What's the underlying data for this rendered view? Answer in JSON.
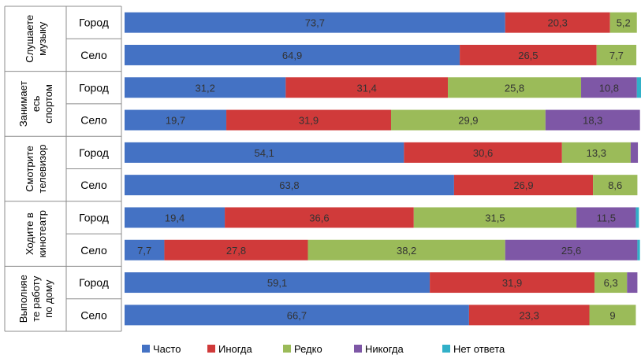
{
  "chart_data": {
    "type": "bar",
    "orientation": "horizontal",
    "stacked": true,
    "groups": [
      {
        "label_lines": [
          "Слушаете",
          "музыку"
        ],
        "rows": [
          {
            "label": "Город",
            "values": [
              73.7,
              20.3,
              5.2,
              0,
              0
            ],
            "labels": [
              "73,7",
              "20,3",
              "5,2",
              "",
              ""
            ]
          },
          {
            "label": "Село",
            "values": [
              64.9,
              26.5,
              7.7,
              0,
              0
            ],
            "labels": [
              "64,9",
              "26,5",
              "7,7",
              "",
              ""
            ]
          }
        ]
      },
      {
        "label_lines": [
          "Занимает",
          "есь",
          "спортом"
        ],
        "rows": [
          {
            "label": "Город",
            "values": [
              31.2,
              31.4,
              25.8,
              10.8,
              0.8
            ],
            "labels": [
              "31,2",
              "31,4",
              "25,8",
              "10,8",
              ""
            ]
          },
          {
            "label": "Село",
            "values": [
              19.7,
              31.9,
              29.9,
              18.3,
              0
            ],
            "labels": [
              "19,7",
              "31,9",
              "29,9",
              "18,3",
              ""
            ]
          }
        ]
      },
      {
        "label_lines": [
          "Смотрите",
          "телевизор"
        ],
        "rows": [
          {
            "label": "Город",
            "values": [
              54.1,
              30.6,
              13.3,
              1.4,
              0
            ],
            "labels": [
              "54,1",
              "30,6",
              "13,3",
              "",
              ""
            ]
          },
          {
            "label": "Село",
            "values": [
              63.8,
              26.9,
              8.6,
              0,
              0
            ],
            "labels": [
              "63,8",
              "26,9",
              "8,6",
              "",
              ""
            ]
          }
        ]
      },
      {
        "label_lines": [
          "Ходите в",
          "кинотеатр"
        ],
        "rows": [
          {
            "label": "Город",
            "values": [
              19.4,
              36.6,
              31.5,
              11.5,
              0.6
            ],
            "labels": [
              "19,4",
              "36,6",
              "31,5",
              "11,5",
              ""
            ]
          },
          {
            "label": "Село",
            "values": [
              7.7,
              27.8,
              38.2,
              25.6,
              0.5
            ],
            "labels": [
              "7,7",
              "27,8",
              "38,2",
              "25,6",
              ""
            ]
          }
        ]
      },
      {
        "label_lines": [
          "Выполняе",
          "те работу",
          "по дому"
        ],
        "rows": [
          {
            "label": "Город",
            "values": [
              59.1,
              31.9,
              6.3,
              2.0,
              0
            ],
            "labels": [
              "59,1",
              "31,9",
              "6,3",
              "",
              ""
            ]
          },
          {
            "label": "Село",
            "values": [
              66.7,
              23.3,
              9,
              0,
              0
            ],
            "labels": [
              "66,7",
              "23,3",
              "9",
              "",
              ""
            ]
          }
        ]
      }
    ],
    "series": [
      {
        "name": "Часто",
        "color": "#4472C4"
      },
      {
        "name": "Иногда",
        "color": "#D03A3A"
      },
      {
        "name": "Редко",
        "color": "#9BBB59"
      },
      {
        "name": "Никогда",
        "color": "#7E57A6"
      },
      {
        "name": "Нет ответа",
        "color": "#31B0C8"
      }
    ],
    "xlim": [
      0,
      100
    ],
    "grid": false,
    "legend": "bottom"
  }
}
